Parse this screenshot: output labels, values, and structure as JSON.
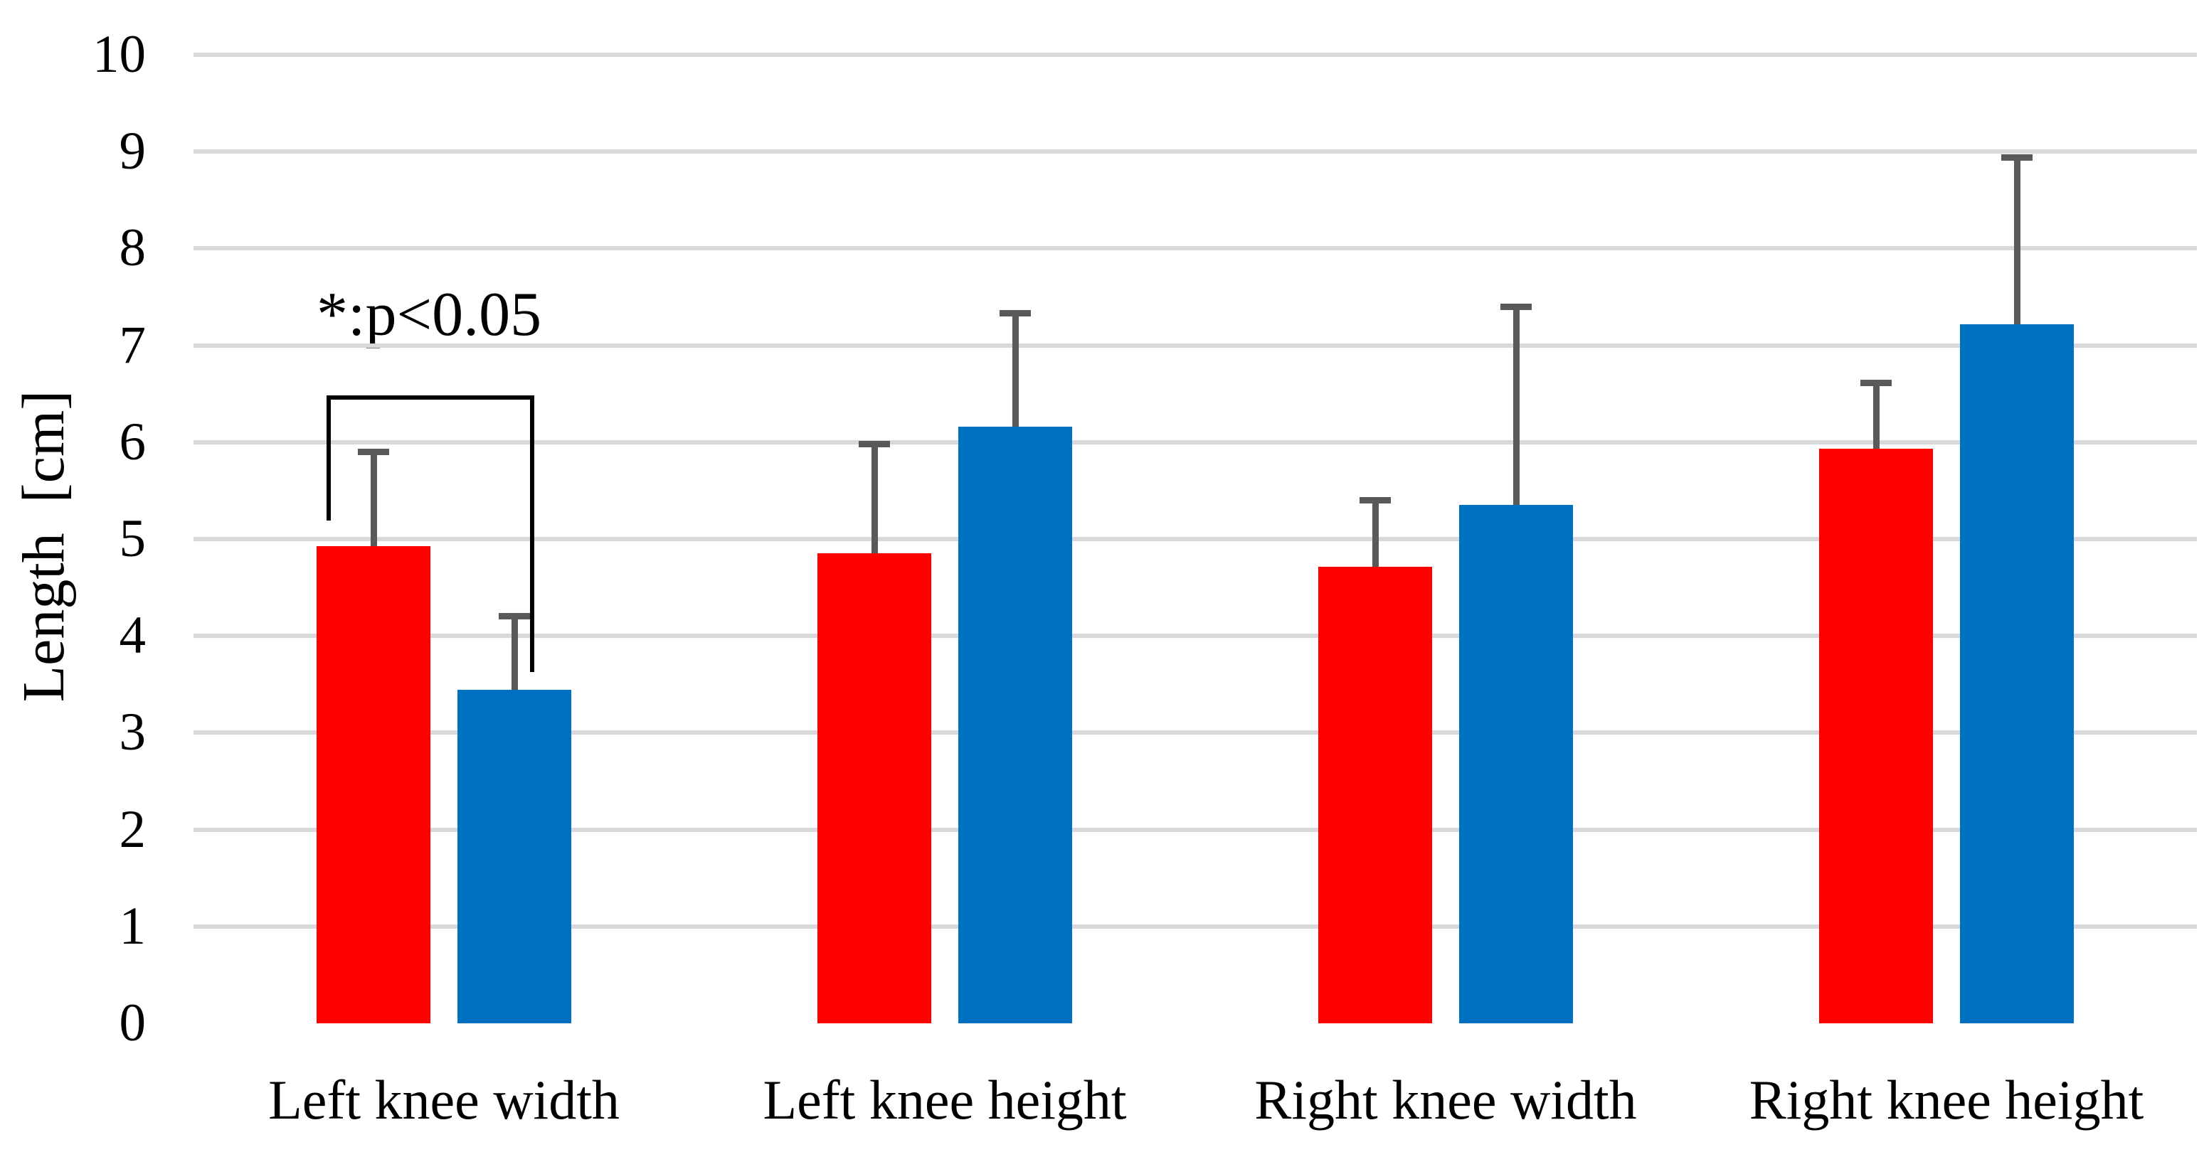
{
  "page": {
    "background": "#FFFFFF"
  },
  "chart_data": {
    "type": "bar",
    "title": "",
    "categories": [
      "Left knee width",
      "Left knee height",
      "Right knee width",
      "Right knee height"
    ],
    "series": [
      {
        "name": "red-series",
        "color": "#FF0000",
        "values": [
          4.93,
          4.85,
          4.71,
          5.93
        ],
        "error_tops": [
          5.9,
          5.98,
          5.4,
          6.61
        ]
      },
      {
        "name": "blue-series",
        "color": "#0070C0",
        "values": [
          3.44,
          6.16,
          5.35,
          7.22
        ],
        "error_tops": [
          4.2,
          7.33,
          7.4,
          8.94
        ]
      }
    ],
    "xlabel": "",
    "ylabel": "Length  [cm]",
    "ylim": [
      0,
      10
    ],
    "ytick_step": 1,
    "yticks": [
      "0",
      "1",
      "2",
      "3",
      "4",
      "5",
      "6",
      "7",
      "8",
      "9",
      "10"
    ],
    "grid": true,
    "gridline_color": "#D9D9D9",
    "error_bar_color": "#595959",
    "legend_position": "none",
    "annotation": {
      "text": "*:p<0.05",
      "bracket": {
        "category_index": 0,
        "between": [
          "red-series",
          "blue-series"
        ],
        "top_value": 6.48,
        "left_leg_bottom_value": 5.19,
        "right_leg_bottom_value": 3.63
      }
    }
  }
}
